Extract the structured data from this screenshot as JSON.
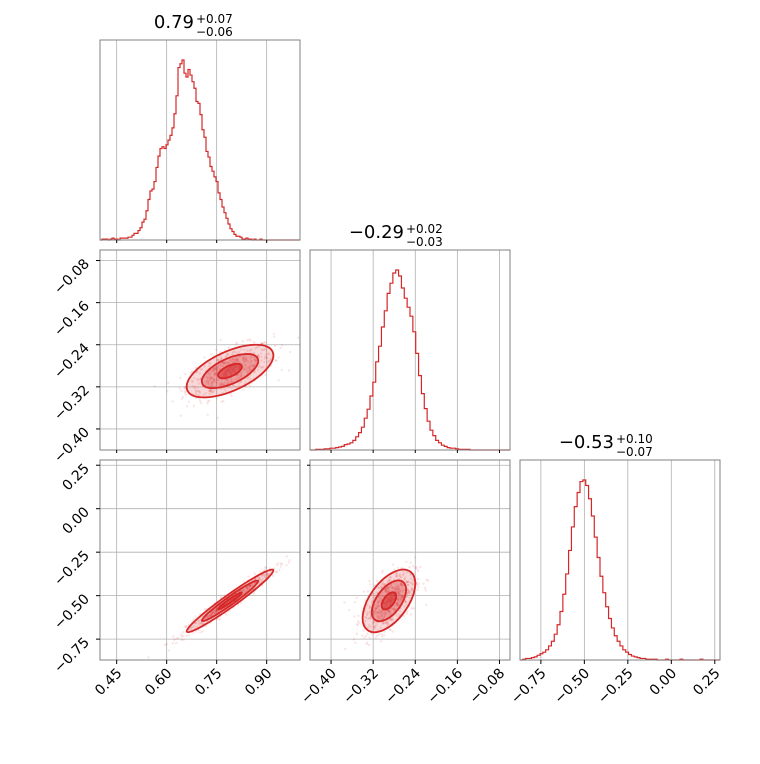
{
  "figure": {
    "accent_color": "#d62728",
    "grid_color": "#b0b0b0"
  },
  "chart_data": {
    "type": "corner",
    "parameters": [
      {
        "median": "0.79",
        "plus": "+0.07",
        "minus": "−0.06",
        "range": [
          0.4,
          1.0
        ],
        "ticks": [
          0.45,
          0.6,
          0.75,
          0.9
        ],
        "tick_labels": [
          "0.45",
          "0.60",
          "0.75",
          "0.90"
        ]
      },
      {
        "median": "−0.29",
        "plus": "+0.02",
        "minus": "−0.03",
        "range": [
          -0.44,
          -0.06
        ],
        "ticks": [
          -0.4,
          -0.32,
          -0.24,
          -0.16,
          -0.08
        ],
        "tick_labels": [
          "−0.40",
          "−0.32",
          "−0.24",
          "−0.16",
          "−0.08"
        ]
      },
      {
        "median": "−0.53",
        "plus": "+0.10",
        "minus": "−0.07",
        "range": [
          -0.87,
          0.28
        ],
        "ticks": [
          -0.75,
          -0.5,
          -0.25,
          0.0,
          0.25
        ],
        "tick_labels": [
          "−0.75",
          "−0.50",
          "−0.25",
          "0.00",
          "0.25"
        ]
      }
    ],
    "histograms": [
      {
        "param": 0,
        "bin_range": [
          0.4,
          1.0
        ],
        "counts": [
          0,
          1,
          1,
          1,
          0,
          1,
          2,
          1,
          1,
          0,
          2,
          2,
          2,
          2,
          3,
          3,
          5,
          7,
          7,
          10,
          13,
          19,
          22,
          31,
          43,
          52,
          54,
          62,
          77,
          89,
          97,
          99,
          97,
          101,
          106,
          111,
          119,
          134,
          153,
          183,
          187,
          191,
          177,
          173,
          181,
          175,
          168,
          161,
          147,
          145,
          133,
          117,
          109,
          94,
          88,
          78,
          73,
          67,
          62,
          50,
          43,
          35,
          29,
          23,
          17,
          12,
          9,
          6,
          4,
          4,
          3,
          1,
          1,
          2,
          1,
          1,
          0,
          1,
          0,
          0,
          1,
          0,
          0,
          0,
          0,
          0,
          0,
          0,
          0,
          0,
          0,
          0,
          0,
          0,
          0,
          0,
          0,
          0,
          0,
          0
        ]
      },
      {
        "param": 1,
        "bin_range": [
          -0.44,
          -0.06
        ],
        "counts": [
          0,
          0,
          1,
          1,
          1,
          2,
          2,
          3,
          3,
          4,
          5,
          6,
          9,
          10,
          12,
          16,
          22,
          29,
          38,
          53,
          68,
          90,
          113,
          147,
          173,
          205,
          232,
          261,
          278,
          295,
          300,
          290,
          270,
          253,
          238,
          223,
          197,
          161,
          124,
          94,
          69,
          48,
          33,
          24,
          16,
          12,
          8,
          6,
          4,
          3,
          3,
          2,
          1,
          1,
          1,
          1,
          0,
          0,
          0,
          0,
          0,
          0,
          0,
          0,
          0,
          0,
          0,
          0,
          0,
          0
        ]
      },
      {
        "param": 2,
        "bin_range": [
          -0.87,
          0.28
        ],
        "counts": [
          0,
          1,
          2,
          2,
          3,
          4,
          6,
          8,
          10,
          13,
          18,
          24,
          33,
          45,
          62,
          84,
          110,
          140,
          170,
          196,
          214,
          228,
          230,
          223,
          206,
          184,
          157,
          131,
          107,
          86,
          68,
          53,
          41,
          31,
          24,
          18,
          13,
          10,
          7,
          5,
          4,
          3,
          2,
          2,
          1,
          1,
          1,
          1,
          0,
          0,
          0,
          1,
          0,
          0,
          0,
          0,
          1,
          0,
          0,
          0,
          0,
          0,
          0,
          1,
          0,
          0,
          0,
          0,
          0,
          0
        ]
      }
    ],
    "joint": [
      {
        "x_param": 0,
        "y_param": 1,
        "n_points": 650,
        "center": [
          0.79,
          -0.29
        ],
        "sd": [
          0.065,
          0.025
        ],
        "rho": 0.6
      },
      {
        "x_param": 0,
        "y_param": 2,
        "n_points": 650,
        "center": [
          0.79,
          -0.53
        ],
        "sd": [
          0.065,
          0.09
        ],
        "rho": 0.97
      },
      {
        "x_param": 1,
        "y_param": 2,
        "n_points": 650,
        "center": [
          -0.29,
          -0.53
        ],
        "sd": [
          0.025,
          0.09
        ],
        "rho": 0.55
      }
    ]
  }
}
